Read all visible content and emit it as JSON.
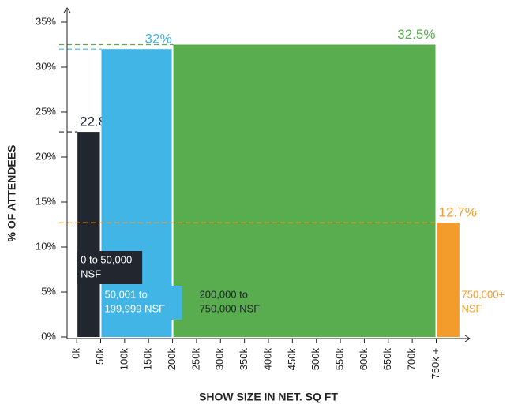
{
  "chart_data": {
    "type": "histogram",
    "xlabel": "SHOW SIZE IN NET. SQ FT",
    "ylabel": "% OF ATTENDEES",
    "categories": [
      [
        "0 to 50,000",
        "NSF"
      ],
      [
        "50,001 to",
        "199,999 NSF"
      ],
      [
        "200,000 to",
        "750,000 NSF"
      ],
      [
        "750,000+",
        "NSF"
      ]
    ],
    "bins": [
      0,
      50,
      200,
      750,
      800
    ],
    "values": [
      22.8,
      32,
      32.5,
      12.7
    ],
    "value_labels": [
      "22.8%",
      "32%",
      "32.5%",
      "12.7%"
    ],
    "colors": [
      "#22272f",
      "#41b6e6",
      "#5aad4f",
      "#f39c2b"
    ],
    "xlim": [
      -20,
      820
    ],
    "ylim": [
      0,
      35
    ],
    "xticks": [
      {
        "value": 0,
        "label": "0k"
      },
      {
        "value": 50,
        "label": "50k"
      },
      {
        "value": 100,
        "label": "100k"
      },
      {
        "value": 150,
        "label": "150k"
      },
      {
        "value": 200,
        "label": "200k"
      },
      {
        "value": 250,
        "label": "250k"
      },
      {
        "value": 300,
        "label": "300k"
      },
      {
        "value": 350,
        "label": "350k"
      },
      {
        "value": 400,
        "label": "400k"
      },
      {
        "value": 450,
        "label": "450k"
      },
      {
        "value": 500,
        "label": "500k"
      },
      {
        "value": 550,
        "label": "550k"
      },
      {
        "value": 600,
        "label": "600k"
      },
      {
        "value": 650,
        "label": "650k"
      },
      {
        "value": 700,
        "label": "700k"
      },
      {
        "value": 750,
        "label": "750k +"
      }
    ],
    "yticks": [
      {
        "value": 0,
        "label": "0%"
      },
      {
        "value": 5,
        "label": "5%"
      },
      {
        "value": 10,
        "label": "10%"
      },
      {
        "value": 15,
        "label": "15%"
      },
      {
        "value": 20,
        "label": "20%"
      },
      {
        "value": 25,
        "label": "25%"
      },
      {
        "value": 30,
        "label": "30%"
      },
      {
        "value": 35,
        "label": "35%"
      }
    ],
    "reference_lines": true
  }
}
